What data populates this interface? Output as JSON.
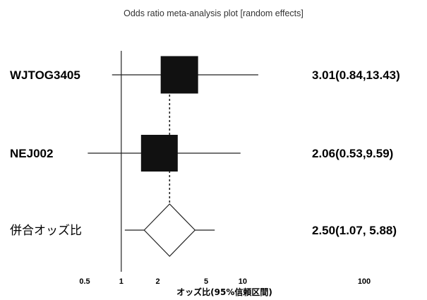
{
  "chart_data": {
    "type": "forest",
    "title": "Odds ratio meta-analysis plot [random effects]",
    "xlabel": "オッズ比(95%信頼区間)",
    "x_scale": "log",
    "xlim": [
      0.5,
      100
    ],
    "reference_line": 1,
    "ticks": [
      {
        "value": 0.5,
        "label": "0.5"
      },
      {
        "value": 1,
        "label": "1"
      },
      {
        "value": 2,
        "label": "2"
      },
      {
        "value": 5,
        "label": "5"
      },
      {
        "value": 10,
        "label": "10"
      },
      {
        "value": 100,
        "label": "100"
      }
    ],
    "studies": [
      {
        "label": "WJTOG3405",
        "or": 3.01,
        "low": 0.84,
        "high": 13.43,
        "ci_text": "3.01(0.84,13.43)"
      },
      {
        "label": "NEJ002",
        "or": 2.06,
        "low": 0.53,
        "high": 9.59,
        "ci_text": "2.06(0.53,9.59)"
      }
    ],
    "pooled": {
      "label": "併合オッズ比",
      "or": 2.5,
      "low": 1.07,
      "high": 5.88,
      "ci_text": "2.50(1.07, 5.88)"
    }
  },
  "colors": {
    "marker": "#111111",
    "line": "#222222",
    "diamond_fill": "#ffffff"
  }
}
